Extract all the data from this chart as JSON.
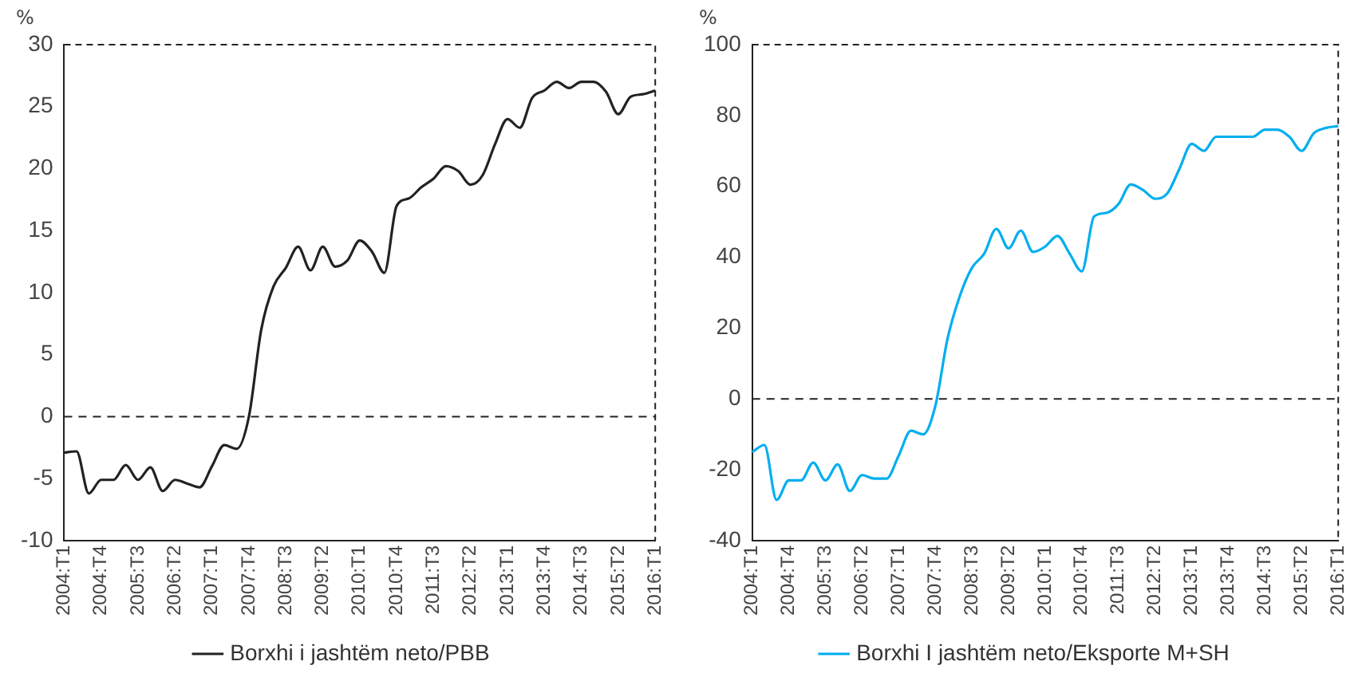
{
  "chart_data": [
    {
      "type": "line",
      "ylabel": "%",
      "categories": [
        "2004:T1",
        null,
        null,
        "2004:T4",
        null,
        null,
        "2005:T3",
        null,
        null,
        "2006:T2",
        null,
        null,
        "2007:T1",
        null,
        null,
        "2007:T4",
        null,
        null,
        "2008:T3",
        null,
        null,
        "2009:T2",
        null,
        null,
        "2010:T1",
        null,
        null,
        "2010:T4",
        null,
        null,
        "2011:T3",
        null,
        null,
        "2012:T2",
        null,
        null,
        "2013:T1",
        null,
        null,
        "2013:T4",
        null,
        null,
        "2014:T3",
        null,
        null,
        "2015:T2",
        null,
        null,
        "2016:T1"
      ],
      "series": [
        {
          "name": "Borxhi i jashtëm neto/PBB",
          "color": "#222222",
          "values": [
            -2.9,
            -2.8,
            -6.2,
            -5.1,
            -5.1,
            -3.9,
            -5.1,
            -4.1,
            -6.0,
            -5.1,
            -5.4,
            -5.7,
            -4.0,
            -2.3,
            -2.6,
            0,
            7,
            10.5,
            12,
            13.7,
            11.8,
            13.7,
            12.1,
            12.6,
            14.2,
            13.3,
            11.6,
            17.0,
            17.6,
            18.5,
            19.2,
            20.2,
            19.8,
            18.7,
            19.5,
            22.0,
            24.0,
            23.3,
            25.7,
            26.3,
            27.0,
            26.5,
            27.0,
            27.0,
            26.2,
            24.4,
            25.8,
            26.0,
            26.3
          ]
        }
      ],
      "ylim": [
        -10,
        30
      ],
      "yticks": [
        -10,
        -5,
        0,
        5,
        10,
        15,
        20,
        25,
        30
      ],
      "grid": false,
      "legend": "bottom",
      "marker": "none",
      "line_style": "solid",
      "ref_lines": [
        {
          "axis": "y",
          "value": 0,
          "line_style": "dashed",
          "color": "#222222"
        }
      ]
    },
    {
      "type": "line",
      "ylabel": "%",
      "categories": [
        "2004:T1",
        null,
        null,
        "2004:T4",
        null,
        null,
        "2005:T3",
        null,
        null,
        "2006:T2",
        null,
        null,
        "2007:T1",
        null,
        null,
        "2007:T4",
        null,
        null,
        "2008:T3",
        null,
        null,
        "2009:T2",
        null,
        null,
        "2010:T1",
        null,
        null,
        "2010:T4",
        null,
        null,
        "2011:T3",
        null,
        null,
        "2012:T2",
        null,
        null,
        "2013:T1",
        null,
        null,
        "2013:T4",
        null,
        null,
        "2014:T3",
        null,
        null,
        "2015:T2",
        null,
        null,
        "2016:T1"
      ],
      "series": [
        {
          "name": "Borxhi I jashtëm neto/Eksporte M+SH",
          "color": "#00aeef",
          "values": [
            -15,
            -13,
            -28.5,
            -23,
            -23,
            -18,
            -23,
            -18.5,
            -26,
            -21.5,
            -22.5,
            -22.5,
            -16,
            -9,
            -10,
            -2,
            17,
            29,
            37,
            41,
            48,
            42.5,
            47.5,
            41.5,
            43,
            46,
            41,
            36,
            51.5,
            52.5,
            55,
            60.5,
            59,
            56.5,
            58,
            65,
            72,
            70,
            74,
            74,
            74,
            74,
            76,
            76,
            74,
            70,
            75,
            76.5,
            77
          ]
        }
      ],
      "ylim": [
        -40,
        100
      ],
      "yticks": [
        -40,
        -20,
        0,
        20,
        40,
        60,
        80,
        100
      ],
      "grid": false,
      "legend": "bottom",
      "marker": "none",
      "line_style": "solid",
      "ref_lines": [
        {
          "axis": "y",
          "value": 0,
          "line_style": "dashed",
          "color": "#222222"
        }
      ]
    }
  ]
}
